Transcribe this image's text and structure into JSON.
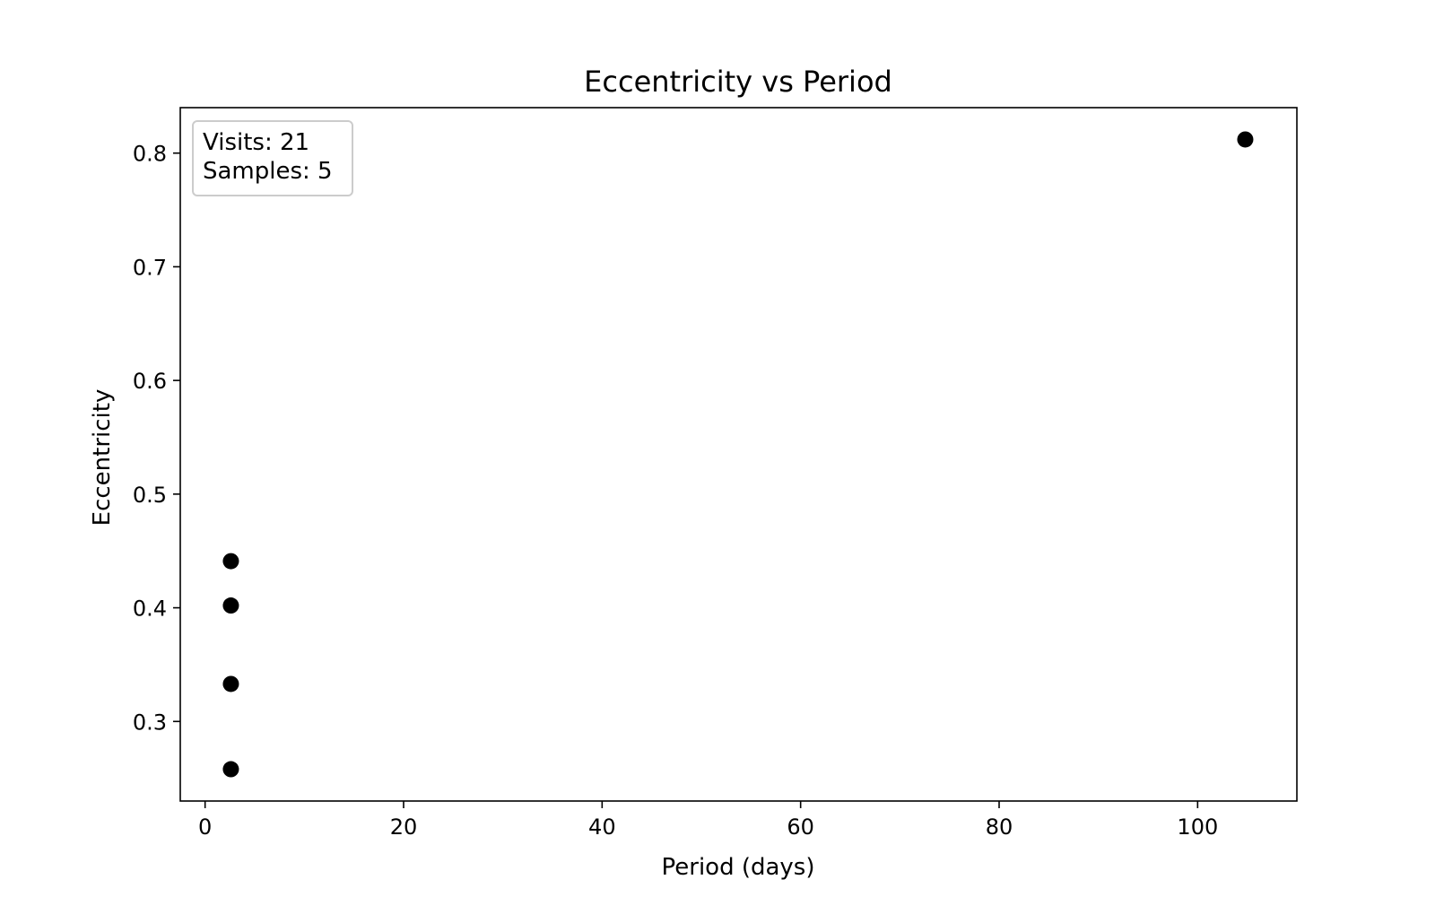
{
  "chart_data": {
    "type": "scatter",
    "title": "Eccentricity vs Period",
    "xlabel": "Period (days)",
    "ylabel": "Eccentricity",
    "xlim": [
      -2.5,
      110
    ],
    "ylim": [
      0.23,
      0.84
    ],
    "xticks": [
      0,
      20,
      40,
      60,
      80,
      100
    ],
    "xtick_labels": [
      "0",
      "20",
      "40",
      "60",
      "80",
      "100"
    ],
    "yticks": [
      0.3,
      0.4,
      0.5,
      0.6,
      0.7,
      0.8
    ],
    "ytick_labels": [
      "0.3",
      "0.4",
      "0.5",
      "0.6",
      "0.7",
      "0.8"
    ],
    "grid": false,
    "marker_color": "#000000",
    "series": [
      {
        "points": [
          {
            "x": 2.6,
            "y": 0.441
          },
          {
            "x": 2.6,
            "y": 0.402
          },
          {
            "x": 2.6,
            "y": 0.333
          },
          {
            "x": 2.6,
            "y": 0.258
          },
          {
            "x": 104.8,
            "y": 0.812
          }
        ]
      }
    ],
    "annotation": {
      "placement": "top-left",
      "lines": [
        "Visits: 21",
        "Samples: 5"
      ]
    }
  }
}
